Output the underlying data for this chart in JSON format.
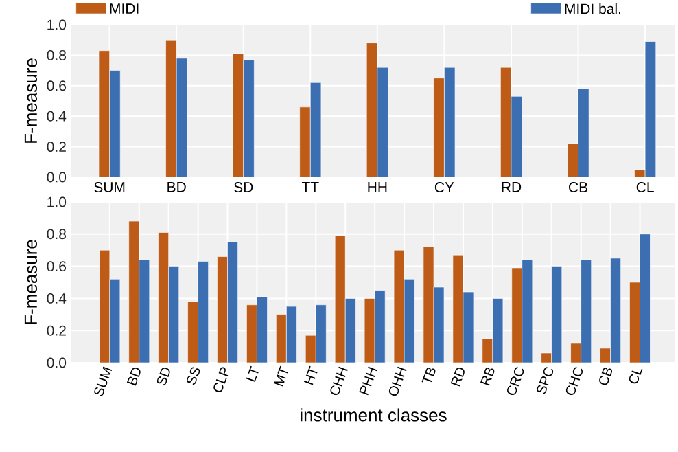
{
  "chart_data": [
    {
      "type": "bar",
      "ylabel": "F-measure",
      "categories": [
        "SUM",
        "BD",
        "SD",
        "TT",
        "HH",
        "CY",
        "RD",
        "CB",
        "CL"
      ],
      "series": [
        {
          "name": "MIDI",
          "color": "#bd5b17",
          "values": [
            0.83,
            0.9,
            0.81,
            0.46,
            0.88,
            0.65,
            0.72,
            0.22,
            0.05
          ]
        },
        {
          "name": "MIDI bal.",
          "color": "#3c6eb2",
          "values": [
            0.7,
            0.78,
            0.77,
            0.62,
            0.72,
            0.72,
            0.53,
            0.58,
            0.89
          ]
        }
      ],
      "ylim": [
        0,
        1.0
      ],
      "yticks": [
        {
          "value": 0,
          "label": "0.0"
        },
        {
          "value": 0.2,
          "label": "0.2"
        },
        {
          "value": 0.4,
          "label": "0.4"
        },
        {
          "value": 0.6,
          "label": "0.6"
        },
        {
          "value": 0.8,
          "label": "0.8"
        },
        {
          "value": 1.0,
          "label": "1.0"
        }
      ],
      "grid": true,
      "legend": "top"
    },
    {
      "type": "bar",
      "ylabel": "F-measure",
      "xlabel": "instrument classes",
      "categories": [
        "SUM",
        "BD",
        "SD",
        "SS",
        "CLP",
        "LT",
        "MT",
        "HT",
        "CHH",
        "PHH",
        "OHH",
        "TB",
        "RD",
        "RB",
        "CRC",
        "SPC",
        "CHC",
        "CB",
        "CL"
      ],
      "series": [
        {
          "color": "#bd5b17",
          "values": [
            0.7,
            0.88,
            0.81,
            0.38,
            0.66,
            0.36,
            0.3,
            0.17,
            0.79,
            0.4,
            0.7,
            0.72,
            0.67,
            0.15,
            0.59,
            0.06,
            0.12,
            0.09,
            0.5
          ]
        },
        {
          "color": "#3c6eb2",
          "values": [
            0.52,
            0.64,
            0.6,
            0.63,
            0.75,
            0.41,
            0.35,
            0.36,
            0.4,
            0.45,
            0.52,
            0.47,
            0.44,
            0.4,
            0.64,
            0.6,
            0.64,
            0.65,
            0.8
          ]
        }
      ],
      "ylim": [
        0,
        1.0
      ],
      "yticks": [
        {
          "value": 0,
          "label": "0.0"
        },
        {
          "value": 0.2,
          "label": "0.2"
        },
        {
          "value": 0.4,
          "label": "0.4"
        },
        {
          "value": 0.6,
          "label": "0.6"
        },
        {
          "value": 0.8,
          "label": "0.8"
        },
        {
          "value": 1.0,
          "label": "1.0"
        }
      ],
      "grid": true
    }
  ]
}
